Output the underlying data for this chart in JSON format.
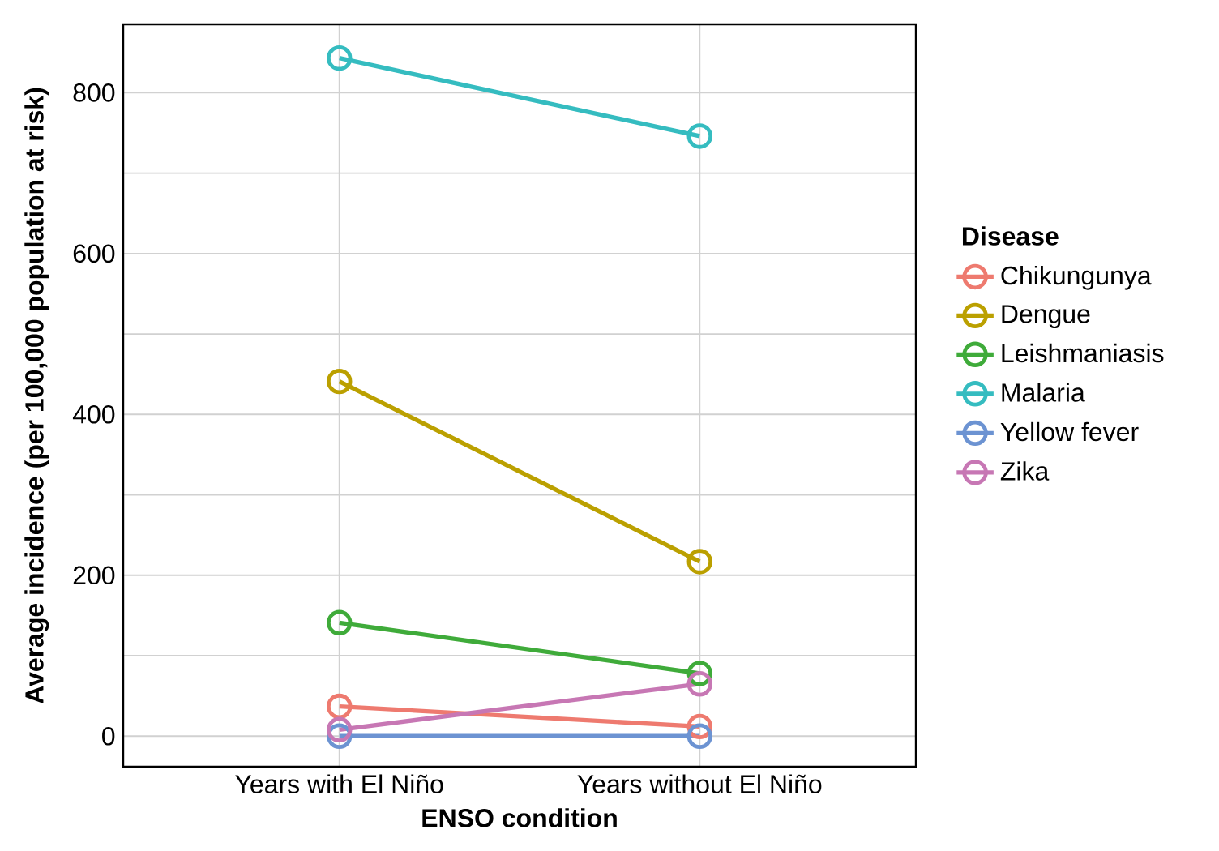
{
  "chart_data": {
    "type": "line",
    "xlabel": "ENSO condition",
    "ylabel": "Average incidence (per 100,000 population at risk)",
    "legend_title": "Disease",
    "categories": [
      "Years with El Niño",
      "Years without El Niño"
    ],
    "series": [
      {
        "name": "Chikungunya",
        "color": "#ee7a6f",
        "values": [
          37,
          12
        ]
      },
      {
        "name": "Dengue",
        "color": "#bba000",
        "values": [
          441,
          217
        ]
      },
      {
        "name": "Leishmaniasis",
        "color": "#3fab3a",
        "values": [
          141,
          78
        ]
      },
      {
        "name": "Malaria",
        "color": "#35bcc0",
        "values": [
          843,
          746
        ]
      },
      {
        "name": "Yellow fever",
        "color": "#6c93d2",
        "values": [
          0,
          0
        ]
      },
      {
        "name": "Zika",
        "color": "#c777b4",
        "values": [
          8,
          65
        ]
      }
    ],
    "ylim": [
      -38,
      885
    ],
    "yticks": [
      0,
      200,
      400,
      600,
      800
    ],
    "grid": true,
    "legend": "right",
    "marker": "circle",
    "line_style": "solid"
  }
}
